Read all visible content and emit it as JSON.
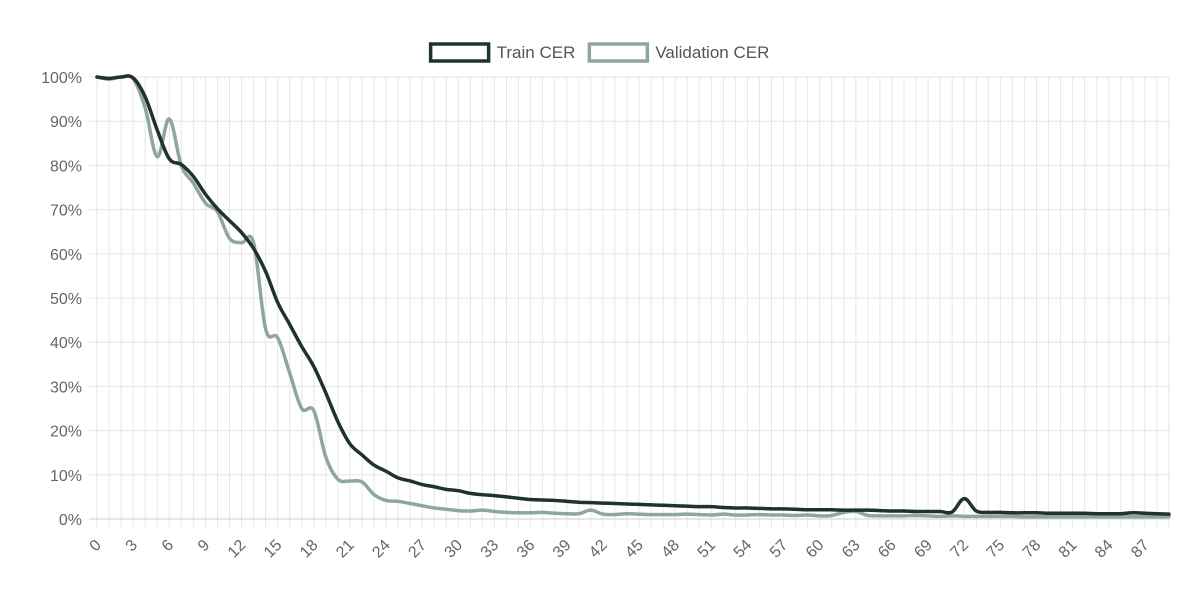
{
  "chart_data": {
    "type": "line",
    "title": "",
    "xlabel": "",
    "ylabel": "",
    "x_range": [
      0,
      89
    ],
    "xticks": [
      0,
      3,
      6,
      9,
      12,
      15,
      18,
      21,
      24,
      27,
      30,
      33,
      36,
      39,
      42,
      45,
      48,
      51,
      54,
      57,
      60,
      63,
      66,
      69,
      72,
      75,
      78,
      81,
      84,
      87
    ],
    "ylim": [
      0,
      100
    ],
    "yticks": [
      0,
      10,
      20,
      30,
      40,
      50,
      60,
      70,
      80,
      90,
      100
    ],
    "y_unit": "%",
    "grid": true,
    "legend_position": "top-center",
    "series": [
      {
        "name": "Train CER",
        "color": "#1f332c",
        "values": [
          [
            0,
            100
          ],
          [
            1,
            99.7
          ],
          [
            2,
            100
          ],
          [
            3,
            99.8
          ],
          [
            4,
            95.5
          ],
          [
            5,
            88
          ],
          [
            6,
            81.5
          ],
          [
            7,
            80.2
          ],
          [
            8,
            77.5
          ],
          [
            9,
            73.5
          ],
          [
            10,
            70.2
          ],
          [
            11,
            67.5
          ],
          [
            12,
            64.8
          ],
          [
            13,
            61.2
          ],
          [
            14,
            56
          ],
          [
            15,
            49
          ],
          [
            16,
            44
          ],
          [
            17,
            39
          ],
          [
            18,
            34.5
          ],
          [
            19,
            28.5
          ],
          [
            20,
            22
          ],
          [
            21,
            17
          ],
          [
            22,
            14.5
          ],
          [
            23,
            12.2
          ],
          [
            24,
            10.8
          ],
          [
            25,
            9.3
          ],
          [
            26,
            8.6
          ],
          [
            27,
            7.8
          ],
          [
            28,
            7.3
          ],
          [
            29,
            6.7
          ],
          [
            30,
            6.4
          ],
          [
            31,
            5.8
          ],
          [
            32,
            5.5
          ],
          [
            33,
            5.3
          ],
          [
            34,
            5
          ],
          [
            35,
            4.7
          ],
          [
            36,
            4.4
          ],
          [
            37,
            4.3
          ],
          [
            38,
            4.2
          ],
          [
            39,
            4
          ],
          [
            40,
            3.8
          ],
          [
            41,
            3.7
          ],
          [
            42,
            3.6
          ],
          [
            43,
            3.5
          ],
          [
            44,
            3.4
          ],
          [
            45,
            3.3
          ],
          [
            46,
            3.2
          ],
          [
            47,
            3.1
          ],
          [
            48,
            3
          ],
          [
            49,
            2.9
          ],
          [
            50,
            2.8
          ],
          [
            51,
            2.8
          ],
          [
            52,
            2.6
          ],
          [
            53,
            2.5
          ],
          [
            54,
            2.5
          ],
          [
            55,
            2.4
          ],
          [
            56,
            2.3
          ],
          [
            57,
            2.3
          ],
          [
            58,
            2.2
          ],
          [
            59,
            2.1
          ],
          [
            60,
            2.1
          ],
          [
            61,
            2.1
          ],
          [
            62,
            2
          ],
          [
            63,
            2
          ],
          [
            64,
            2
          ],
          [
            65,
            1.9
          ],
          [
            66,
            1.8
          ],
          [
            67,
            1.8
          ],
          [
            68,
            1.7
          ],
          [
            69,
            1.7
          ],
          [
            70,
            1.7
          ],
          [
            71,
            1.6
          ],
          [
            72,
            4.6
          ],
          [
            73,
            1.8
          ],
          [
            74,
            1.5
          ],
          [
            75,
            1.5
          ],
          [
            76,
            1.4
          ],
          [
            77,
            1.4
          ],
          [
            78,
            1.4
          ],
          [
            79,
            1.3
          ],
          [
            80,
            1.3
          ],
          [
            81,
            1.3
          ],
          [
            82,
            1.3
          ],
          [
            83,
            1.2
          ],
          [
            84,
            1.2
          ],
          [
            85,
            1.2
          ],
          [
            86,
            1.4
          ],
          [
            87,
            1.3
          ],
          [
            88,
            1.2
          ],
          [
            89,
            1.1
          ]
        ]
      },
      {
        "name": "Validation CER",
        "color": "#8fa69a",
        "values": [
          [
            0,
            100
          ],
          [
            1,
            99.5
          ],
          [
            2,
            100
          ],
          [
            3,
            99.6
          ],
          [
            4,
            93
          ],
          [
            5,
            82
          ],
          [
            6,
            90.5
          ],
          [
            7,
            80
          ],
          [
            8,
            76
          ],
          [
            9,
            71.5
          ],
          [
            10,
            69.5
          ],
          [
            11,
            63.5
          ],
          [
            12,
            62.5
          ],
          [
            13,
            62.5
          ],
          [
            14,
            43
          ],
          [
            15,
            41
          ],
          [
            16,
            33
          ],
          [
            17,
            25
          ],
          [
            18,
            24.5
          ],
          [
            19,
            14
          ],
          [
            20,
            9
          ],
          [
            21,
            8.6
          ],
          [
            22,
            8.4
          ],
          [
            23,
            5.5
          ],
          [
            24,
            4.2
          ],
          [
            25,
            4
          ],
          [
            26,
            3.5
          ],
          [
            27,
            3
          ],
          [
            28,
            2.5
          ],
          [
            29,
            2.2
          ],
          [
            30,
            1.9
          ],
          [
            31,
            1.8
          ],
          [
            32,
            2
          ],
          [
            33,
            1.7
          ],
          [
            34,
            1.5
          ],
          [
            35,
            1.4
          ],
          [
            36,
            1.4
          ],
          [
            37,
            1.5
          ],
          [
            38,
            1.3
          ],
          [
            39,
            1.2
          ],
          [
            40,
            1.2
          ],
          [
            41,
            2
          ],
          [
            42,
            1.1
          ],
          [
            43,
            1
          ],
          [
            44,
            1.2
          ],
          [
            45,
            1.1
          ],
          [
            46,
            1
          ],
          [
            47,
            1
          ],
          [
            48,
            1
          ],
          [
            49,
            1.1
          ],
          [
            50,
            1
          ],
          [
            51,
            0.9
          ],
          [
            52,
            1.1
          ],
          [
            53,
            0.9
          ],
          [
            54,
            0.9
          ],
          [
            55,
            1
          ],
          [
            56,
            0.9
          ],
          [
            57,
            0.9
          ],
          [
            58,
            0.8
          ],
          [
            59,
            0.9
          ],
          [
            60,
            0.7
          ],
          [
            61,
            0.8
          ],
          [
            62,
            1.5
          ],
          [
            63,
            1.7
          ],
          [
            64,
            0.8
          ],
          [
            65,
            0.7
          ],
          [
            66,
            0.7
          ],
          [
            67,
            0.7
          ],
          [
            68,
            0.8
          ],
          [
            69,
            0.7
          ],
          [
            70,
            0.6
          ],
          [
            71,
            0.7
          ],
          [
            72,
            0.6
          ],
          [
            73,
            0.6
          ],
          [
            74,
            0.6
          ],
          [
            75,
            0.6
          ],
          [
            76,
            0.6
          ],
          [
            77,
            0.5
          ],
          [
            78,
            0.5
          ],
          [
            79,
            0.5
          ],
          [
            80,
            0.5
          ],
          [
            81,
            0.5
          ],
          [
            82,
            0.5
          ],
          [
            83,
            0.5
          ],
          [
            84,
            0.5
          ],
          [
            85,
            0.5
          ],
          [
            86,
            0.5
          ],
          [
            87,
            0.5
          ],
          [
            88,
            0.5
          ],
          [
            89,
            0.5
          ]
        ]
      }
    ]
  }
}
